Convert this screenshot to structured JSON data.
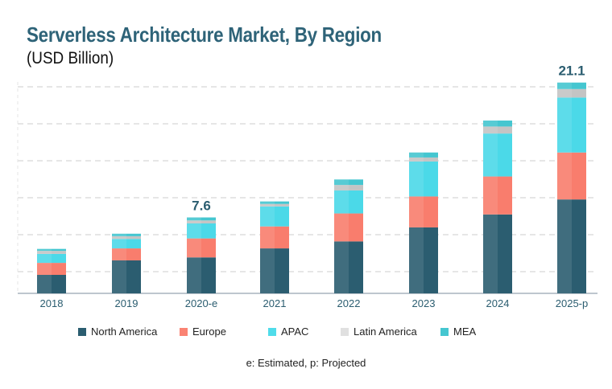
{
  "chart_data": {
    "type": "bar",
    "stacked": true,
    "title": "Serverless Architecture Market, By Region",
    "subtitle": "(USD Billion)",
    "xlabel": "",
    "ylabel": "",
    "ylim": [
      0,
      22
    ],
    "grid": true,
    "legend_position": "bottom",
    "categories": [
      "2018",
      "2019",
      "2020-e",
      "2021",
      "2022",
      "2023",
      "2024",
      "2025-p"
    ],
    "series": [
      {
        "name": "North America",
        "color": "#2b5d70",
        "values": [
          1.85,
          3.3,
          3.6,
          4.5,
          5.2,
          6.6,
          7.9,
          9.4
        ]
      },
      {
        "name": "Europe",
        "color": "#f97d6d",
        "values": [
          1.2,
          1.2,
          1.9,
          2.2,
          2.8,
          3.1,
          3.8,
          4.7
        ]
      },
      {
        "name": "APAC",
        "color": "#4bd9e8",
        "values": [
          0.9,
          0.95,
          1.5,
          2.0,
          2.3,
          3.5,
          4.3,
          5.5
        ]
      },
      {
        "name": "Latin America",
        "color": "#c4c4c4",
        "values": [
          0.3,
          0.27,
          0.3,
          0.25,
          0.55,
          0.4,
          0.7,
          0.85
        ]
      },
      {
        "name": "MEA",
        "color": "#45c6d0",
        "values": [
          0.2,
          0.25,
          0.3,
          0.25,
          0.55,
          0.5,
          0.6,
          0.65
        ]
      }
    ],
    "annotations": [
      {
        "category": "2020-e",
        "text": "7.6"
      },
      {
        "category": "2025-p",
        "text": "21.1"
      }
    ],
    "footnote": "e: Estimated, p: Projected"
  },
  "legend_swatches": [
    "#2b5d70",
    "#fa8373",
    "#4fdcea",
    "#e0e0e0",
    "#45c6d0"
  ]
}
